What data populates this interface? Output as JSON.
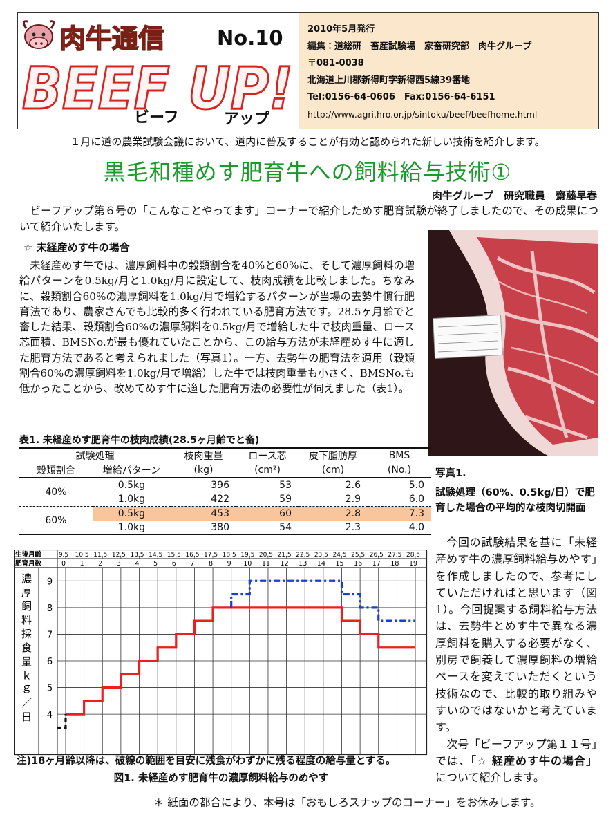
{
  "header": {
    "logo_title": "肉牛通信",
    "issue": "No.10",
    "brand": "BEEF UP!",
    "brand_kana": [
      "ビーフ",
      "アップ"
    ],
    "info": [
      "2010年5月発行",
      "編集：道総研　畜産試験場　家畜研究部　肉牛グループ",
      "〒081-0038",
      "北海道上川郡新得町字新得西5線39番地",
      "Tel:0156-64-0606　Fax:0156-64-6151",
      "http://www.agri.hro.or.jp/sintoku/beef/beefhome.html"
    ]
  },
  "intro": "１月に道の農業試験会議において、道内に普及することが有効と認められた新しい技術を紹介します。",
  "title": "黒毛和種めす肥育牛への飼料給与技術①",
  "author": "肉牛グループ　研究職員　齋藤早春",
  "lead": "ビーフアップ第６号の「こんなことやってます」コーナーで紹介しためす肥育試験が終了しましたので、その成果について紹介いたします。",
  "section": {
    "heading": "☆ 未経産めす牛の場合",
    "body": "未経産めす牛では、濃厚飼料中の穀類割合を40%と60%に、そして濃厚飼料の増給パターンを0.5kg/月と1.0kg/月に設定して、枝肉成績を比較しました。ちなみに、穀類割合60%の濃厚飼料を1.0kg/月で増給するパターンが当場の去勢牛慣行肥育法であり、農家さんでも比較的多く行われている肥育方法です。28.5ヶ月齢でと畜した結果、穀類割合60%の濃厚飼料を0.5kg/月で増給した牛で枝肉重量、ロース芯面積、BMSNo.が最も優れていたことから、この給与方法が未経産めす牛に適した肥育方法であると考えられました（写真1）。一方、去勢牛の肥育法を適用（穀類割合60%の濃厚飼料を1.0kg/月で増給）した牛では枝肉重量も小さく、BMSNo.も低かったことから、改めてめす牛に適した肥育方法の必要性が伺えました（表1）。"
  },
  "table": {
    "caption": "表1. 未経産めす肥育牛の枝肉成績(28.5ヶ月齢でと畜)",
    "header": [
      "試験処理",
      "枝肉重量",
      "ロース芯",
      "皮下脂肪厚",
      "BMS"
    ],
    "subheader": [
      "穀類割合",
      "増給パターン",
      "(kg)",
      "(cm²)",
      "(cm)",
      "(No.)"
    ],
    "groups": [
      {
        "label": "40%",
        "rows": [
          [
            "0.5kg",
            "396",
            "53",
            "2.6",
            "5.0"
          ],
          [
            "1.0kg",
            "422",
            "59",
            "2.9",
            "6.0"
          ]
        ]
      },
      {
        "label": "60%",
        "rows": [
          [
            "0.5kg",
            "453",
            "60",
            "2.8",
            "7.3"
          ],
          [
            "1.0kg",
            "380",
            "54",
            "2.3",
            "4.0"
          ]
        ]
      }
    ]
  },
  "photo": {
    "label": "写真1.",
    "caption": "試験処理（60%、0.5kg/日）で肥育した場合の平均的な枝肉切開面"
  },
  "side_text": "今回の試験結果を基に「未経産めす牛の濃厚飼料給与めやす」を作成しましたので、参考にしていただければと思います（図1）。今回提案する飼料給与方法は、去勢牛とめす牛で異なる濃厚飼料を購入する必要がなく、別房で飼養して濃厚飼料の増給ペースを変えていただくという技術なので、比較的取り組みやすいのではないかと考えています。",
  "next_issue": [
    "次号「ビーフアップ第１１号」では、",
    "「☆ 経産めす牛の場合」",
    "について紹介します。"
  ],
  "chart_data": {
    "type": "line",
    "caption": "図1. 未経産めす肥育牛の濃厚飼料給与のめやす",
    "note": "注)18ヶ月齢以降は、破線の範囲を目安に残食がわずかに残る程度の給与量とする。",
    "xlabel": "肥育月数",
    "x2label": "生後月齢",
    "ylabel": "濃厚飼料採食量ｋｇ／日",
    "xlim": [
      -0.45,
      19.6
    ],
    "xticks": [
      0,
      1,
      2,
      3,
      4,
      5,
      6,
      7,
      8,
      9,
      10,
      11,
      12,
      13,
      14,
      15,
      16,
      17,
      18,
      19
    ],
    "x2lim": [
      9.05,
      29.1
    ],
    "x2ticks": [
      9.5,
      10.5,
      11.5,
      12.5,
      13.5,
      14.5,
      15.5,
      16.5,
      17.5,
      18.5,
      19.5,
      20.5,
      21.5,
      22.5,
      23.5,
      24.5,
      25.5,
      26.5,
      27.5,
      28.5
    ],
    "ylim": [
      2.5,
      9.5
    ],
    "yticks": [
      4,
      5,
      6,
      7,
      8,
      9
    ],
    "grid": true,
    "series": [
      {
        "color": "#e8211d",
        "style": "solid",
        "x": [
          0,
          1,
          1,
          2,
          2,
          3,
          3,
          4,
          4,
          5,
          5,
          6,
          6,
          7,
          7,
          8,
          8,
          15,
          15,
          16,
          16,
          17,
          17,
          19
        ],
        "values": [
          4,
          4,
          4.5,
          4.5,
          5,
          5,
          5.5,
          5.5,
          6,
          6,
          6.5,
          6.5,
          7,
          7,
          7.5,
          7.5,
          8,
          8,
          7.5,
          7.5,
          7,
          7,
          6.5,
          6.5
        ]
      },
      {
        "color": "#1a3fd0",
        "style": "dashdot",
        "x": [
          9,
          9,
          10,
          10,
          15,
          15,
          16,
          16,
          17,
          17,
          19
        ],
        "values": [
          8,
          8.5,
          8.5,
          9,
          9,
          8.5,
          8.5,
          8,
          8,
          7.5,
          7.5
        ]
      },
      {
        "color": "#111111",
        "style": "dashed",
        "x": [
          -0.45,
          0,
          0
        ],
        "values": [
          3.5,
          3.5,
          4
        ]
      }
    ]
  },
  "footer": "＊ 紙面の都合により、本号は「おもしろスナップのコーナー」をお休みします。"
}
